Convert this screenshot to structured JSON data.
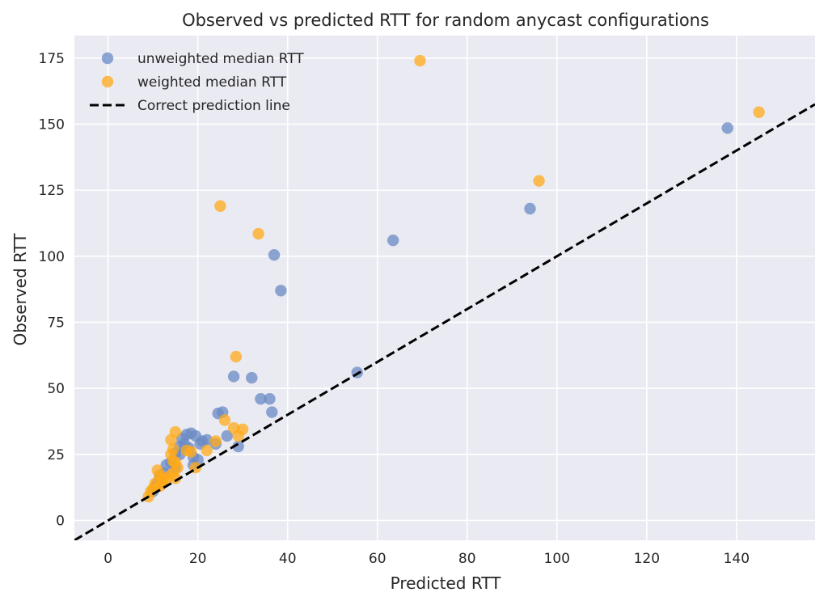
{
  "chart_data": {
    "type": "scatter",
    "title": "Observed vs predicted RTT for random anycast configurations",
    "xlabel": "Predicted RTT",
    "ylabel": "Observed RTT",
    "xlim": [
      -7.5,
      157.5
    ],
    "ylim": [
      -7.5,
      183.5
    ],
    "x_ticks": [
      0,
      20,
      40,
      60,
      80,
      100,
      120,
      140
    ],
    "y_ticks": [
      0,
      25,
      50,
      75,
      100,
      125,
      150,
      175
    ],
    "grid": true,
    "legend_position": "top-left",
    "colors": {
      "background": "#eaeaf2",
      "grid": "#ffffff",
      "unweighted": "#6a89c4",
      "weighted": "#ffa918",
      "line": "#000000",
      "text": "#262626"
    },
    "series": [
      {
        "name": "unweighted median RTT",
        "kind": "scatter",
        "color": "#6a89c4",
        "points": [
          [
            138,
            148.5
          ],
          [
            94,
            118
          ],
          [
            63.5,
            106
          ],
          [
            37,
            100.5
          ],
          [
            38.5,
            87
          ],
          [
            55.5,
            56
          ],
          [
            28,
            54.5
          ],
          [
            32,
            54
          ],
          [
            34,
            46
          ],
          [
            36,
            46
          ],
          [
            36.5,
            41
          ],
          [
            24.5,
            40.5
          ],
          [
            25.5,
            41
          ],
          [
            26.5,
            32
          ],
          [
            29,
            28
          ],
          [
            24,
            29
          ],
          [
            22,
            30.5
          ],
          [
            21,
            30
          ],
          [
            20.5,
            29
          ],
          [
            19.5,
            32
          ],
          [
            18.5,
            33
          ],
          [
            17.5,
            32.5
          ],
          [
            16.5,
            31
          ],
          [
            16,
            28
          ],
          [
            17,
            29
          ],
          [
            18,
            27.5
          ],
          [
            19,
            24
          ],
          [
            20,
            23
          ],
          [
            19,
            21
          ],
          [
            16,
            25
          ],
          [
            15,
            25.5
          ],
          [
            14,
            22
          ],
          [
            13,
            21
          ],
          [
            15,
            20
          ],
          [
            12.5,
            18
          ],
          [
            11.5,
            17
          ],
          [
            12,
            15
          ],
          [
            11,
            14
          ],
          [
            10.5,
            12.5
          ],
          [
            10,
            11
          ]
        ]
      },
      {
        "name": "weighted median RTT",
        "kind": "scatter",
        "color": "#ffa918",
        "points": [
          [
            69.5,
            174
          ],
          [
            145,
            154.5
          ],
          [
            96,
            128.5
          ],
          [
            25,
            119
          ],
          [
            33.5,
            108.5
          ],
          [
            28.5,
            62
          ],
          [
            26,
            38
          ],
          [
            28,
            35
          ],
          [
            30,
            34.5
          ],
          [
            29,
            32
          ],
          [
            24,
            30
          ],
          [
            22,
            26.5
          ],
          [
            19.5,
            20
          ],
          [
            17.5,
            26.5
          ],
          [
            18.5,
            26
          ],
          [
            15,
            33.5
          ],
          [
            14,
            30.5
          ],
          [
            14.5,
            27
          ],
          [
            14,
            25
          ],
          [
            14.5,
            22.5
          ],
          [
            15,
            22
          ],
          [
            15.5,
            20
          ],
          [
            14.5,
            18
          ],
          [
            15,
            16
          ],
          [
            13.5,
            16.5
          ],
          [
            12.5,
            15.5
          ],
          [
            12,
            16
          ],
          [
            11,
            19
          ],
          [
            11.5,
            17
          ],
          [
            12,
            14
          ],
          [
            11.5,
            13
          ],
          [
            10.5,
            14
          ],
          [
            10,
            12
          ],
          [
            9.5,
            11
          ],
          [
            9,
            9
          ]
        ]
      },
      {
        "name": "Correct prediction line",
        "kind": "line",
        "style": "dashed",
        "color": "#000000",
        "points": [
          [
            -7.5,
            -7.5
          ],
          [
            157.5,
            157.5
          ]
        ]
      }
    ]
  }
}
